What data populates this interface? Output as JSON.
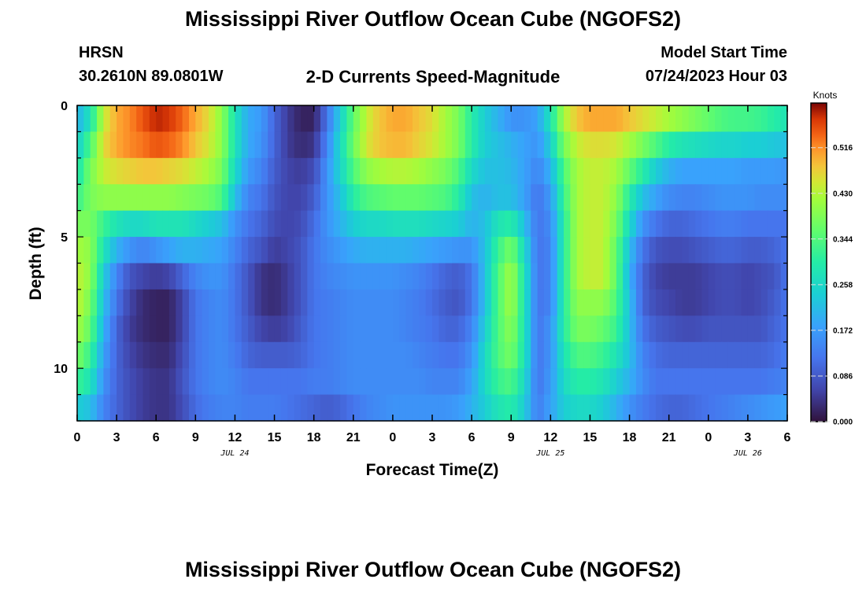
{
  "titles": {
    "main": "Mississippi River Outflow Ocean Cube (NGOFS2)",
    "footer": "Mississippi River Outflow Ocean Cube (NGOFS2)",
    "station": "HRSN",
    "coords": "30.2610N  89.0801W",
    "subtitle": "2-D Currents Speed-Magnitude",
    "start_label": "Model Start Time",
    "start_value": "07/24/2023 Hour 03"
  },
  "chart_data": {
    "type": "heatmap",
    "xlabel": "Forecast Time(Z)",
    "ylabel": "Depth (ft)",
    "x_tick_labels": [
      "0",
      "3",
      "6",
      "9",
      "12",
      "15",
      "18",
      "21",
      "0",
      "3",
      "6",
      "9",
      "12",
      "15",
      "18",
      "21",
      "0",
      "3",
      "6"
    ],
    "date_labels": [
      {
        "label": "JUL 24",
        "hour": 12
      },
      {
        "label": "JUL 25",
        "hour": 36
      },
      {
        "label": "JUL 26",
        "hour": 51
      }
    ],
    "xlim": [
      0,
      54
    ],
    "ylim": [
      0,
      12
    ],
    "y_ticks": [
      0,
      5,
      10
    ],
    "y_tick_labels": [
      "0",
      "5",
      "10"
    ],
    "colorbar": {
      "unit": "Knots",
      "range": [
        0.0,
        0.6
      ],
      "ticks": [
        0.0,
        0.086,
        0.172,
        0.258,
        0.344,
        0.43,
        0.516
      ],
      "tick_labels": [
        "0.000",
        "0.086",
        "0.172",
        "0.258",
        "0.344",
        "0.430",
        "0.516"
      ]
    },
    "depth_layers": [
      0.5,
      1.5,
      2.5,
      3.5,
      4.5,
      5.5,
      6.5,
      7.5,
      8.5,
      9.5,
      10.5,
      11.5
    ],
    "speed_keyframes": {
      "hours": [
        0,
        1,
        2,
        3,
        4,
        5,
        6,
        7,
        8,
        9,
        10,
        11,
        12,
        13,
        14,
        15,
        16,
        17,
        18,
        19,
        20,
        21,
        22,
        23,
        24,
        25,
        26,
        27,
        28,
        29,
        30,
        31,
        32,
        33,
        34,
        35,
        36,
        37,
        38,
        39,
        40,
        41,
        42,
        43,
        44,
        45,
        46,
        47,
        48,
        49,
        50,
        51,
        52,
        53,
        54
      ],
      "rows": [
        [
          0.2,
          0.28,
          0.44,
          0.5,
          0.52,
          0.55,
          0.58,
          0.57,
          0.54,
          0.5,
          0.46,
          0.4,
          0.28,
          0.19,
          0.17,
          0.1,
          0.05,
          0.02,
          0.02,
          0.12,
          0.24,
          0.36,
          0.44,
          0.48,
          0.5,
          0.5,
          0.48,
          0.46,
          0.42,
          0.38,
          0.3,
          0.24,
          0.2,
          0.16,
          0.16,
          0.18,
          0.28,
          0.42,
          0.48,
          0.5,
          0.5,
          0.5,
          0.48,
          0.46,
          0.44,
          0.42,
          0.4,
          0.38,
          0.36,
          0.34,
          0.33,
          0.33,
          0.32,
          0.3,
          0.28
        ],
        [
          0.24,
          0.34,
          0.46,
          0.5,
          0.52,
          0.53,
          0.55,
          0.54,
          0.52,
          0.48,
          0.45,
          0.4,
          0.28,
          0.19,
          0.16,
          0.1,
          0.05,
          0.03,
          0.04,
          0.14,
          0.26,
          0.37,
          0.45,
          0.48,
          0.49,
          0.49,
          0.47,
          0.45,
          0.42,
          0.38,
          0.3,
          0.24,
          0.22,
          0.2,
          0.18,
          0.16,
          0.24,
          0.38,
          0.44,
          0.46,
          0.46,
          0.45,
          0.42,
          0.38,
          0.34,
          0.3,
          0.28,
          0.27,
          0.26,
          0.25,
          0.25,
          0.24,
          0.24,
          0.23,
          0.22
        ],
        [
          0.28,
          0.38,
          0.44,
          0.46,
          0.47,
          0.48,
          0.48,
          0.47,
          0.46,
          0.44,
          0.42,
          0.38,
          0.26,
          0.17,
          0.14,
          0.09,
          0.06,
          0.05,
          0.07,
          0.16,
          0.25,
          0.34,
          0.4,
          0.42,
          0.43,
          0.43,
          0.42,
          0.4,
          0.38,
          0.34,
          0.26,
          0.22,
          0.22,
          0.21,
          0.18,
          0.14,
          0.2,
          0.34,
          0.42,
          0.44,
          0.44,
          0.42,
          0.36,
          0.3,
          0.24,
          0.2,
          0.18,
          0.18,
          0.18,
          0.18,
          0.18,
          0.17,
          0.17,
          0.17,
          0.16
        ],
        [
          0.32,
          0.38,
          0.4,
          0.4,
          0.4,
          0.4,
          0.4,
          0.4,
          0.39,
          0.38,
          0.37,
          0.34,
          0.22,
          0.14,
          0.12,
          0.08,
          0.06,
          0.06,
          0.09,
          0.16,
          0.22,
          0.3,
          0.34,
          0.35,
          0.36,
          0.36,
          0.36,
          0.35,
          0.34,
          0.3,
          0.22,
          0.2,
          0.22,
          0.22,
          0.18,
          0.12,
          0.17,
          0.32,
          0.42,
          0.44,
          0.44,
          0.4,
          0.3,
          0.22,
          0.18,
          0.15,
          0.14,
          0.14,
          0.15,
          0.16,
          0.16,
          0.16,
          0.15,
          0.15,
          0.15
        ],
        [
          0.38,
          0.38,
          0.32,
          0.28,
          0.26,
          0.26,
          0.28,
          0.28,
          0.28,
          0.26,
          0.24,
          0.22,
          0.16,
          0.12,
          0.1,
          0.07,
          0.06,
          0.07,
          0.11,
          0.16,
          0.2,
          0.24,
          0.26,
          0.26,
          0.27,
          0.27,
          0.27,
          0.26,
          0.25,
          0.24,
          0.2,
          0.22,
          0.28,
          0.3,
          0.22,
          0.12,
          0.15,
          0.3,
          0.42,
          0.44,
          0.44,
          0.38,
          0.26,
          0.16,
          0.12,
          0.1,
          0.1,
          0.11,
          0.12,
          0.13,
          0.13,
          0.12,
          0.12,
          0.12,
          0.12
        ],
        [
          0.42,
          0.4,
          0.28,
          0.2,
          0.16,
          0.14,
          0.16,
          0.18,
          0.2,
          0.2,
          0.19,
          0.18,
          0.14,
          0.1,
          0.08,
          0.05,
          0.06,
          0.08,
          0.12,
          0.15,
          0.17,
          0.19,
          0.2,
          0.2,
          0.2,
          0.2,
          0.19,
          0.18,
          0.17,
          0.16,
          0.16,
          0.22,
          0.32,
          0.38,
          0.26,
          0.12,
          0.14,
          0.3,
          0.42,
          0.44,
          0.44,
          0.36,
          0.22,
          0.12,
          0.08,
          0.07,
          0.07,
          0.08,
          0.09,
          0.1,
          0.1,
          0.09,
          0.09,
          0.1,
          0.12
        ],
        [
          0.44,
          0.4,
          0.24,
          0.14,
          0.08,
          0.06,
          0.05,
          0.06,
          0.1,
          0.14,
          0.16,
          0.16,
          0.12,
          0.08,
          0.04,
          0.03,
          0.05,
          0.08,
          0.12,
          0.14,
          0.15,
          0.16,
          0.16,
          0.16,
          0.16,
          0.15,
          0.14,
          0.12,
          0.1,
          0.09,
          0.12,
          0.22,
          0.34,
          0.42,
          0.28,
          0.12,
          0.14,
          0.3,
          0.42,
          0.44,
          0.44,
          0.36,
          0.2,
          0.1,
          0.06,
          0.05,
          0.05,
          0.05,
          0.06,
          0.07,
          0.07,
          0.06,
          0.07,
          0.08,
          0.12
        ],
        [
          0.44,
          0.38,
          0.22,
          0.12,
          0.06,
          0.03,
          0.02,
          0.02,
          0.06,
          0.12,
          0.14,
          0.15,
          0.12,
          0.08,
          0.04,
          0.03,
          0.05,
          0.08,
          0.12,
          0.13,
          0.14,
          0.15,
          0.15,
          0.15,
          0.15,
          0.14,
          0.13,
          0.11,
          0.09,
          0.08,
          0.12,
          0.22,
          0.34,
          0.42,
          0.28,
          0.12,
          0.14,
          0.3,
          0.4,
          0.4,
          0.4,
          0.34,
          0.22,
          0.1,
          0.07,
          0.06,
          0.05,
          0.05,
          0.06,
          0.07,
          0.07,
          0.06,
          0.07,
          0.09,
          0.12
        ],
        [
          0.42,
          0.36,
          0.2,
          0.1,
          0.05,
          0.03,
          0.02,
          0.02,
          0.06,
          0.12,
          0.14,
          0.15,
          0.12,
          0.09,
          0.06,
          0.05,
          0.06,
          0.09,
          0.12,
          0.13,
          0.14,
          0.15,
          0.15,
          0.15,
          0.15,
          0.14,
          0.13,
          0.12,
          0.1,
          0.1,
          0.14,
          0.24,
          0.34,
          0.4,
          0.28,
          0.12,
          0.16,
          0.3,
          0.38,
          0.38,
          0.36,
          0.32,
          0.22,
          0.12,
          0.09,
          0.08,
          0.07,
          0.07,
          0.08,
          0.08,
          0.08,
          0.08,
          0.08,
          0.1,
          0.12
        ],
        [
          0.38,
          0.32,
          0.18,
          0.1,
          0.06,
          0.04,
          0.03,
          0.03,
          0.07,
          0.12,
          0.14,
          0.15,
          0.13,
          0.1,
          0.09,
          0.09,
          0.09,
          0.1,
          0.12,
          0.13,
          0.14,
          0.15,
          0.15,
          0.15,
          0.15,
          0.15,
          0.14,
          0.13,
          0.12,
          0.12,
          0.16,
          0.26,
          0.34,
          0.38,
          0.28,
          0.12,
          0.16,
          0.28,
          0.34,
          0.34,
          0.32,
          0.28,
          0.22,
          0.14,
          0.11,
          0.1,
          0.1,
          0.1,
          0.1,
          0.1,
          0.1,
          0.1,
          0.1,
          0.11,
          0.13
        ],
        [
          0.32,
          0.28,
          0.16,
          0.1,
          0.07,
          0.05,
          0.04,
          0.04,
          0.08,
          0.12,
          0.14,
          0.15,
          0.14,
          0.12,
          0.12,
          0.12,
          0.12,
          0.12,
          0.13,
          0.13,
          0.14,
          0.15,
          0.15,
          0.15,
          0.15,
          0.15,
          0.15,
          0.14,
          0.14,
          0.14,
          0.18,
          0.26,
          0.32,
          0.34,
          0.26,
          0.12,
          0.17,
          0.26,
          0.3,
          0.3,
          0.28,
          0.24,
          0.2,
          0.15,
          0.12,
          0.12,
          0.12,
          0.12,
          0.12,
          0.12,
          0.12,
          0.12,
          0.12,
          0.13,
          0.14
        ],
        [
          0.24,
          0.22,
          0.14,
          0.1,
          0.07,
          0.05,
          0.04,
          0.04,
          0.07,
          0.11,
          0.13,
          0.14,
          0.14,
          0.13,
          0.13,
          0.13,
          0.12,
          0.11,
          0.1,
          0.09,
          0.1,
          0.12,
          0.14,
          0.15,
          0.16,
          0.16,
          0.16,
          0.16,
          0.16,
          0.17,
          0.2,
          0.24,
          0.28,
          0.3,
          0.24,
          0.13,
          0.18,
          0.24,
          0.26,
          0.26,
          0.24,
          0.2,
          0.16,
          0.13,
          0.11,
          0.1,
          0.1,
          0.11,
          0.12,
          0.13,
          0.14,
          0.15,
          0.16,
          0.17,
          0.18
        ]
      ]
    }
  }
}
